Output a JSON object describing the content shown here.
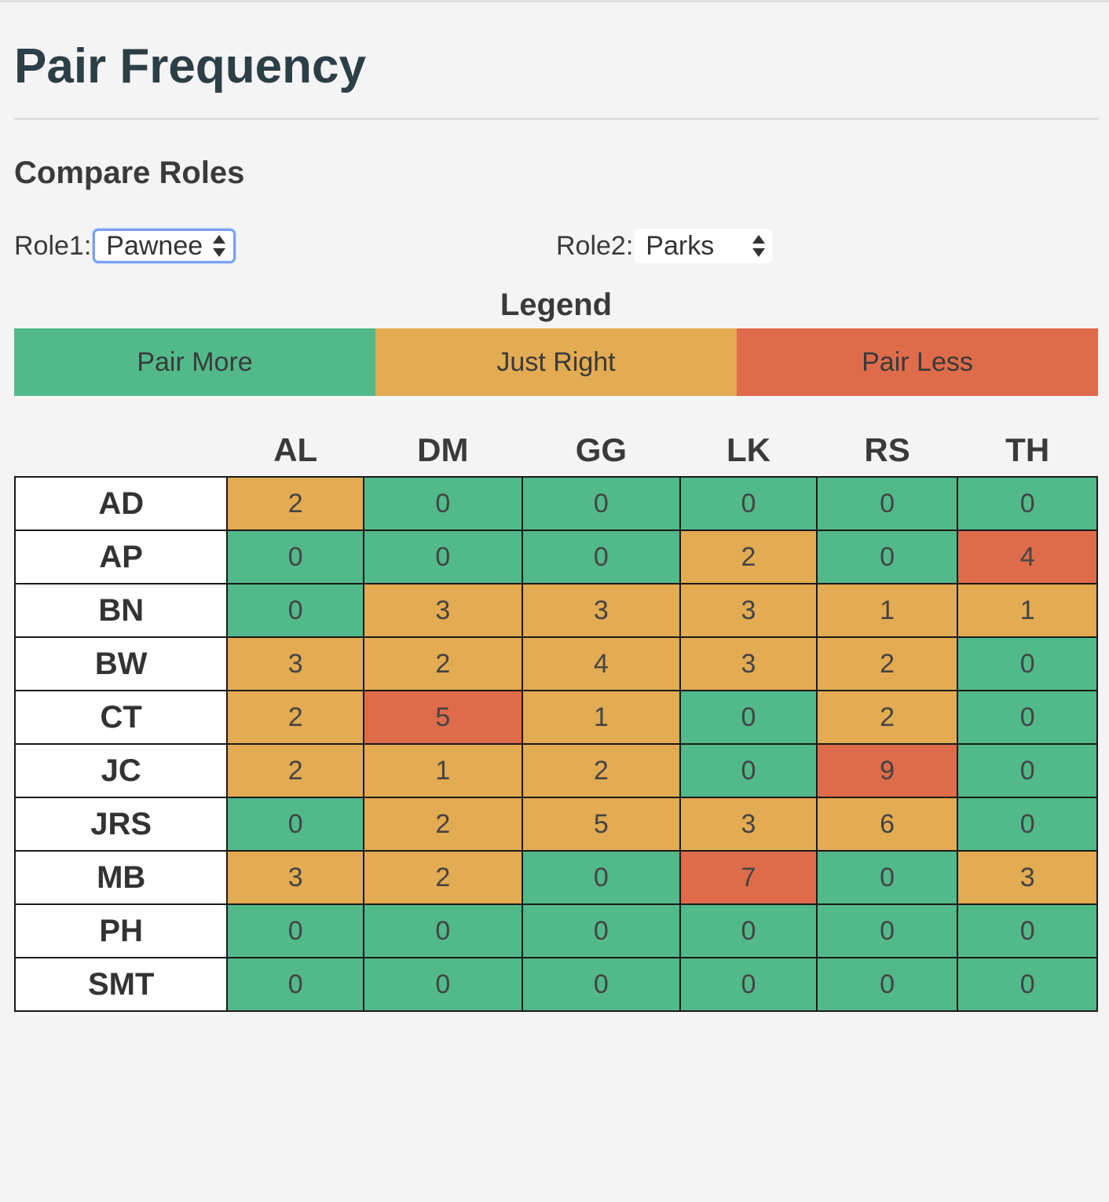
{
  "page": {
    "title": "Pair Frequency",
    "section_title": "Compare Roles"
  },
  "roles": {
    "role1_label": "Role1:",
    "role1_value": "Pawnee",
    "role2_label": "Role2:",
    "role2_value": "Parks"
  },
  "legend": {
    "title": "Legend",
    "items": [
      {
        "label": "Pair More",
        "color": "#52b98a"
      },
      {
        "label": "Just Right",
        "color": "#e3ab52"
      },
      {
        "label": "Pair Less",
        "color": "#de6c4a"
      }
    ]
  },
  "table": {
    "columns": [
      "AL",
      "DM",
      "GG",
      "LK",
      "RS",
      "TH"
    ],
    "rows": [
      {
        "name": "AD",
        "values": [
          2,
          0,
          0,
          0,
          0,
          0
        ],
        "status": [
          "right",
          "more",
          "more",
          "more",
          "more",
          "more"
        ]
      },
      {
        "name": "AP",
        "values": [
          0,
          0,
          0,
          2,
          0,
          4
        ],
        "status": [
          "more",
          "more",
          "more",
          "right",
          "more",
          "less"
        ]
      },
      {
        "name": "BN",
        "values": [
          0,
          3,
          3,
          3,
          1,
          1
        ],
        "status": [
          "more",
          "right",
          "right",
          "right",
          "right",
          "right"
        ]
      },
      {
        "name": "BW",
        "values": [
          3,
          2,
          4,
          3,
          2,
          0
        ],
        "status": [
          "right",
          "right",
          "right",
          "right",
          "right",
          "more"
        ]
      },
      {
        "name": "CT",
        "values": [
          2,
          5,
          1,
          0,
          2,
          0
        ],
        "status": [
          "right",
          "less",
          "right",
          "more",
          "right",
          "more"
        ]
      },
      {
        "name": "JC",
        "values": [
          2,
          1,
          2,
          0,
          9,
          0
        ],
        "status": [
          "right",
          "right",
          "right",
          "more",
          "less",
          "more"
        ]
      },
      {
        "name": "JRS",
        "values": [
          0,
          2,
          5,
          3,
          6,
          0
        ],
        "status": [
          "more",
          "right",
          "right",
          "right",
          "right",
          "more"
        ]
      },
      {
        "name": "MB",
        "values": [
          3,
          2,
          0,
          7,
          0,
          3
        ],
        "status": [
          "right",
          "right",
          "more",
          "less",
          "more",
          "right"
        ]
      },
      {
        "name": "PH",
        "values": [
          0,
          0,
          0,
          0,
          0,
          0
        ],
        "status": [
          "more",
          "more",
          "more",
          "more",
          "more",
          "more"
        ]
      },
      {
        "name": "SMT",
        "values": [
          0,
          0,
          0,
          0,
          0,
          0
        ],
        "status": [
          "more",
          "more",
          "more",
          "more",
          "more",
          "more"
        ]
      }
    ]
  },
  "status_colors": {
    "more": "#52b98a",
    "right": "#e3ab52",
    "less": "#de6c4a"
  }
}
